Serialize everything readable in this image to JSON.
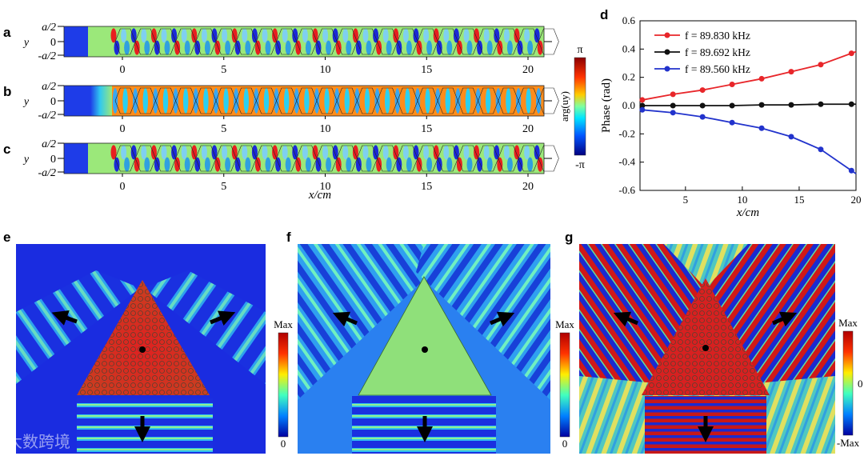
{
  "panel_labels": {
    "a": "a",
    "b": "b",
    "c": "c",
    "d": "d",
    "e": "e",
    "f": "f",
    "g": "g"
  },
  "strips": {
    "y_label": "y",
    "y_ticks": [
      "a/2",
      "0",
      "-a/2"
    ],
    "x_ticks": [
      "0",
      "5",
      "10",
      "15",
      "20"
    ],
    "x_label": "x/cm"
  },
  "phase_colorbar": {
    "top": "π",
    "bottom": "-π",
    "label": "arg(uy)"
  },
  "colorbar_e": {
    "top": "Max",
    "bottom": "0"
  },
  "colorbar_f": {
    "top": "Max",
    "bottom": "0"
  },
  "colorbar_g": {
    "top": "Max",
    "mid": "0",
    "bottom": "-Max"
  },
  "watermark": "大数跨境",
  "colors": {
    "red": "#e8262a",
    "black": "#111111",
    "blue": "#2233cc",
    "field_bg": "#1e2fe0",
    "triangle_green": "#8fe07a"
  },
  "chart_data": {
    "type": "line",
    "xlabel": "x/cm",
    "ylabel": "Phase (rad)",
    "xlim": [
      1,
      20
    ],
    "ylim": [
      -0.6,
      0.6
    ],
    "x_ticks": [
      5,
      10,
      15,
      20
    ],
    "y_ticks": [
      -0.6,
      -0.4,
      -0.2,
      0.0,
      0.2,
      0.4,
      0.6
    ],
    "legend_position": "top-left",
    "series": [
      {
        "name": "f = 89.830 kHz",
        "color": "#e8262a",
        "x": [
          1.2,
          3.9,
          6.5,
          9.1,
          11.7,
          14.3,
          16.9,
          19.6
        ],
        "y": [
          0.04,
          0.08,
          0.11,
          0.15,
          0.19,
          0.24,
          0.29,
          0.37
        ]
      },
      {
        "name": "f = 89.692 kHz",
        "color": "#111111",
        "x": [
          1.2,
          3.9,
          6.5,
          9.1,
          11.7,
          14.3,
          16.9,
          19.6
        ],
        "y": [
          0.0,
          0.0,
          0.0,
          0.0,
          0.005,
          0.005,
          0.01,
          0.01
        ]
      },
      {
        "name": "f = 89.560 kHz",
        "color": "#2233cc",
        "x": [
          1.2,
          3.9,
          6.5,
          9.1,
          11.7,
          14.3,
          16.9,
          19.6
        ],
        "y": [
          -0.03,
          -0.05,
          -0.08,
          -0.12,
          -0.16,
          -0.22,
          -0.31,
          -0.46
        ]
      }
    ]
  }
}
